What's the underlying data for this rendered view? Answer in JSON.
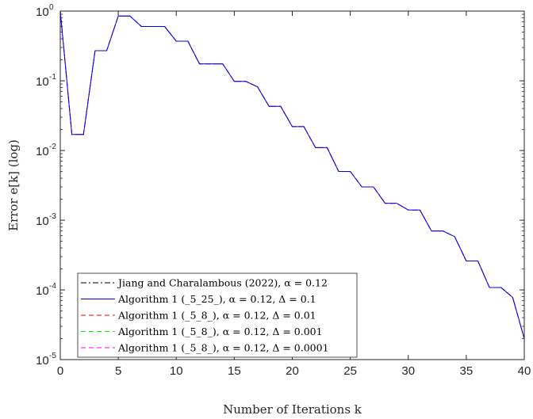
{
  "chart_data": {
    "type": "line",
    "title": "",
    "xlabel": "Number of Iterations k",
    "ylabel": "Error e[k] (log)",
    "xlim": [
      0,
      40
    ],
    "ylim": [
      1e-05,
      1
    ],
    "yscale": "log",
    "grid": false,
    "legend_position": "bottom-left",
    "xticks": [
      0,
      5,
      10,
      15,
      20,
      25,
      30,
      35,
      40
    ],
    "xtick_labels": [
      "0",
      "5",
      "10",
      "15",
      "20",
      "25",
      "30",
      "35",
      "40"
    ],
    "yticks": [
      {
        "value": 1,
        "base": "10",
        "exp": "0"
      },
      {
        "value": 0.1,
        "base": "10",
        "exp": "-1"
      },
      {
        "value": 0.01,
        "base": "10",
        "exp": "-2"
      },
      {
        "value": 0.001,
        "base": "10",
        "exp": "-3"
      },
      {
        "value": 0.0001,
        "base": "10",
        "exp": "-4"
      },
      {
        "value": 1e-05,
        "base": "10",
        "exp": "-5"
      }
    ],
    "series": [
      {
        "name": "Jiang and Charalambous (2022), α = 0.12",
        "color": "#000000",
        "dash": "dashdot",
        "x": [
          0,
          1,
          2,
          3,
          4,
          5,
          6,
          7,
          8,
          9,
          10,
          11,
          12,
          13,
          14,
          15,
          16,
          17,
          18,
          19,
          20,
          21,
          22,
          23,
          24,
          25,
          26,
          27,
          28,
          29,
          30,
          31,
          32,
          33,
          34,
          35,
          36,
          37,
          38,
          39,
          40
        ],
        "y": [
          1.0,
          0.017,
          0.017,
          0.27,
          0.27,
          0.85,
          0.85,
          0.6,
          0.6,
          0.6,
          0.37,
          0.37,
          0.175,
          0.175,
          0.175,
          0.098,
          0.098,
          0.082,
          0.043,
          0.043,
          0.022,
          0.022,
          0.011,
          0.011,
          0.005,
          0.005,
          0.003,
          0.003,
          0.00175,
          0.00175,
          0.0014,
          0.0014,
          0.0007,
          0.0007,
          0.00058,
          0.00026,
          0.00026,
          0.000108,
          0.000108,
          7.8e-05,
          2e-05
        ]
      },
      {
        "name": "Algorithm 1 (_5_25_), α = 0.12, Δ = 0.1",
        "color": "#0000ff",
        "dash": "solid",
        "x": [
          0,
          1,
          2,
          3,
          4,
          5,
          6,
          7,
          8,
          9,
          10,
          11,
          12,
          13,
          14,
          15,
          16,
          17,
          18,
          19,
          20,
          21,
          22,
          23,
          24,
          25,
          26,
          27,
          28,
          29,
          30,
          31,
          32,
          33,
          34,
          35,
          36,
          37,
          38,
          39,
          40
        ],
        "y": [
          1.0,
          0.017,
          0.017,
          0.27,
          0.27,
          0.85,
          0.85,
          0.6,
          0.6,
          0.6,
          0.37,
          0.37,
          0.175,
          0.175,
          0.175,
          0.098,
          0.098,
          0.082,
          0.043,
          0.043,
          0.022,
          0.022,
          0.011,
          0.011,
          0.005,
          0.005,
          0.003,
          0.003,
          0.00175,
          0.00175,
          0.0014,
          0.0014,
          0.0007,
          0.0007,
          0.00058,
          0.00026,
          0.00026,
          0.000108,
          0.000108,
          7.8e-05,
          2e-05
        ]
      },
      {
        "name": "Algorithm 1 (_5_8_), α = 0.12, Δ = 0.01",
        "color": "#ff0000",
        "dash": "dashed",
        "x": [
          0,
          1,
          2,
          3,
          4,
          5,
          6,
          7,
          8,
          9,
          10,
          11,
          12,
          13,
          14,
          15,
          16,
          17,
          18,
          19,
          20,
          21,
          22,
          23,
          24,
          25,
          26,
          27,
          28,
          29,
          30,
          31,
          32,
          33,
          34,
          35,
          36,
          37,
          38,
          39,
          40
        ],
        "y": [
          1.0,
          0.017,
          0.017,
          0.27,
          0.27,
          0.85,
          0.85,
          0.6,
          0.6,
          0.6,
          0.37,
          0.37,
          0.175,
          0.175,
          0.175,
          0.098,
          0.098,
          0.082,
          0.043,
          0.043,
          0.022,
          0.022,
          0.011,
          0.011,
          0.005,
          0.005,
          0.003,
          0.003,
          0.00175,
          0.00175,
          0.0014,
          0.0014,
          0.0007,
          0.0007,
          0.00058,
          0.00026,
          0.00026,
          0.000108,
          0.000108,
          7.8e-05,
          2e-05
        ]
      },
      {
        "name": "Algorithm 1 (_5_8_), α = 0.12, Δ = 0.001",
        "color": "#00ff00",
        "dash": "dashed",
        "x": [
          0,
          1,
          2,
          3,
          4,
          5,
          6,
          7,
          8,
          9,
          10,
          11,
          12,
          13,
          14,
          15,
          16,
          17,
          18,
          19,
          20,
          21,
          22,
          23,
          24,
          25,
          26,
          27,
          28,
          29,
          30,
          31,
          32,
          33,
          34,
          35,
          36,
          37,
          38,
          39,
          40
        ],
        "y": [
          1.0,
          0.017,
          0.017,
          0.27,
          0.27,
          0.85,
          0.85,
          0.6,
          0.6,
          0.6,
          0.37,
          0.37,
          0.175,
          0.175,
          0.175,
          0.098,
          0.098,
          0.082,
          0.043,
          0.043,
          0.022,
          0.022,
          0.011,
          0.011,
          0.005,
          0.005,
          0.003,
          0.003,
          0.00175,
          0.00175,
          0.0014,
          0.0014,
          0.0007,
          0.0007,
          0.00058,
          0.00026,
          0.00026,
          0.000108,
          0.000108,
          7.8e-05,
          2e-05
        ]
      },
      {
        "name": "Algorithm 1 (_5_8_), α = 0.12, Δ = 0.0001",
        "color": "#ff00ff",
        "dash": "dashed",
        "x": [
          0,
          1,
          2,
          3,
          4,
          5,
          6,
          7,
          8,
          9,
          10,
          11,
          12,
          13,
          14,
          15,
          16,
          17,
          18,
          19,
          20,
          21,
          22,
          23,
          24,
          25,
          26,
          27,
          28,
          29,
          30,
          31,
          32,
          33,
          34,
          35,
          36,
          37,
          38,
          39,
          40
        ],
        "y": [
          1.0,
          0.017,
          0.017,
          0.27,
          0.27,
          0.85,
          0.85,
          0.6,
          0.6,
          0.6,
          0.37,
          0.37,
          0.175,
          0.175,
          0.175,
          0.098,
          0.098,
          0.082,
          0.043,
          0.043,
          0.022,
          0.022,
          0.011,
          0.011,
          0.005,
          0.005,
          0.003,
          0.003,
          0.00175,
          0.00175,
          0.0014,
          0.0014,
          0.0007,
          0.0007,
          0.00058,
          0.00026,
          0.00026,
          0.000108,
          0.000108,
          7.8e-05,
          2e-05
        ]
      }
    ],
    "draw_order": [
      0,
      2,
      3,
      4,
      1
    ]
  }
}
